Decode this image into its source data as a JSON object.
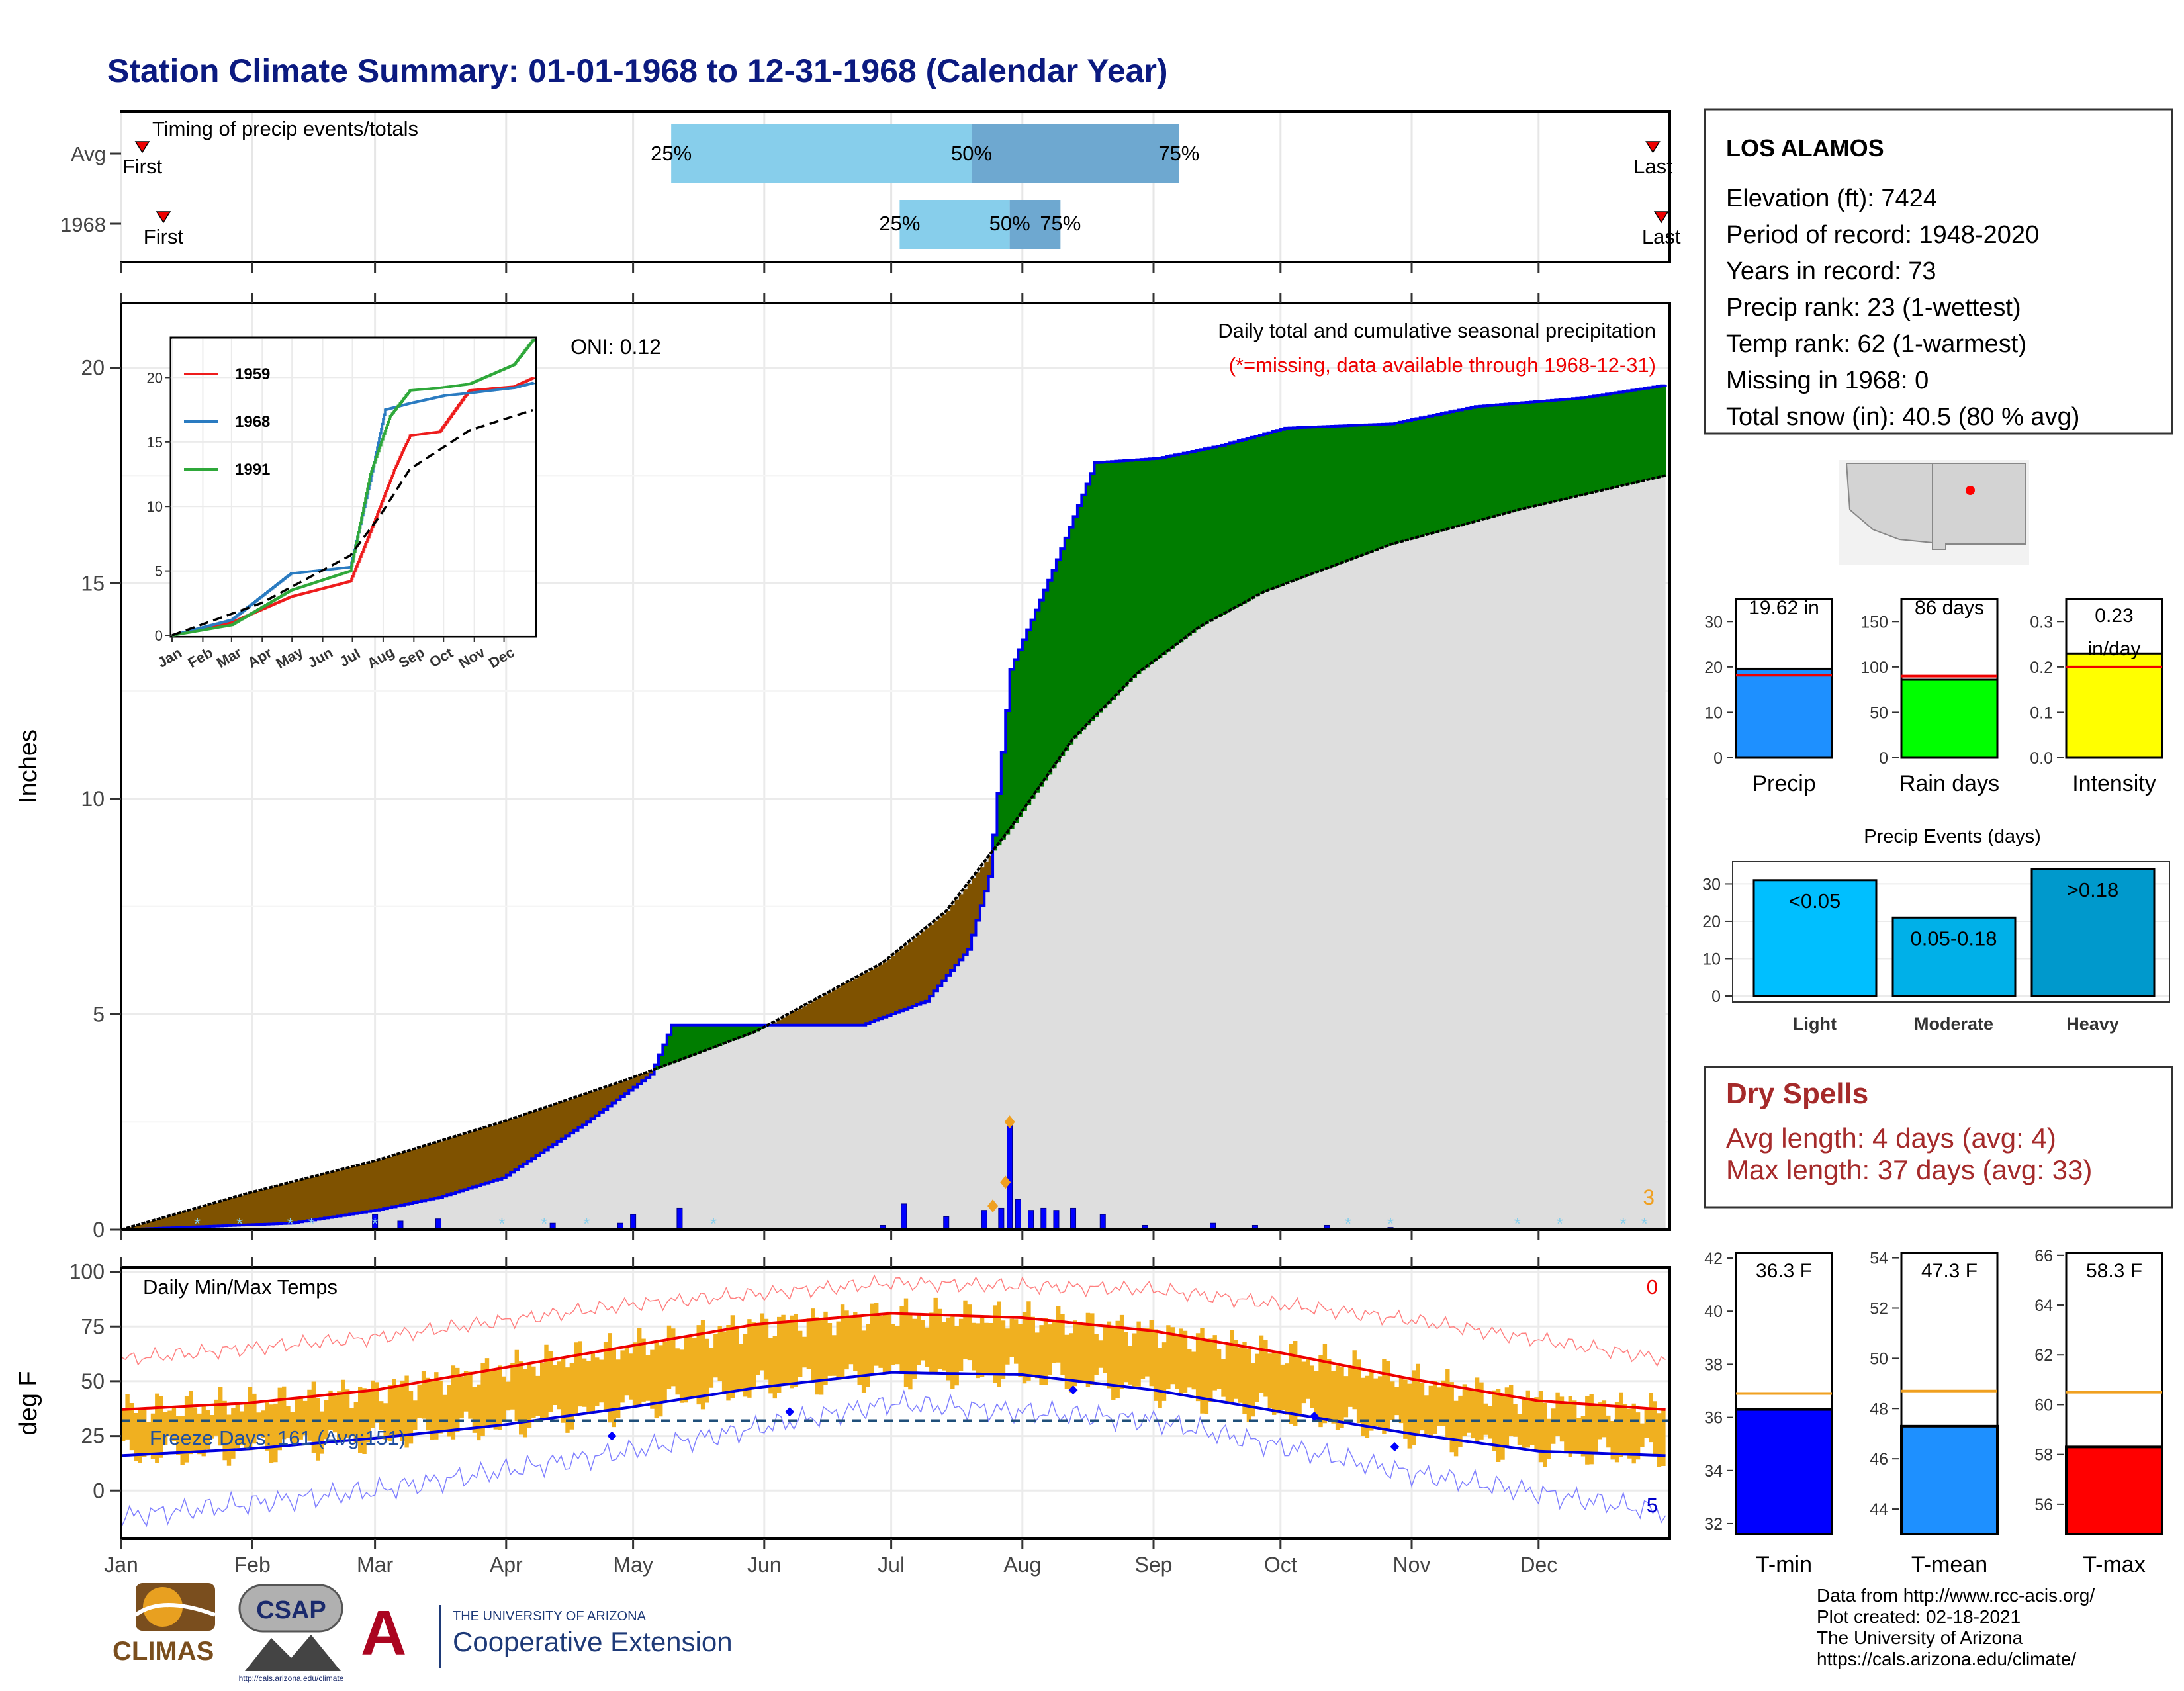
{
  "title": "Station Climate Summary: 01-01-1968 to 12-31-1968 (Calendar Year)",
  "colors": {
    "title": "#0b1a80",
    "cum_fill": "#dedede",
    "above_avg": "#007d00",
    "below_avg": "#7f5200",
    "obs_line": "#0000ee",
    "tmax": "#ee0000",
    "tmin": "#0000dd",
    "range_bar": "#f0b020",
    "spell_text": "#a52a2a",
    "q_light": "#87ceeb",
    "q_dark": "#6ea8d0"
  },
  "timing": {
    "title": "Timing of precip events/totals",
    "rows": [
      {
        "label": "Avg",
        "first": "First",
        "last": "Last",
        "first_day": 5,
        "last_day": 362,
        "q25": 130,
        "q50": 201,
        "q75": 250,
        "p25": "25%",
        "p50": "50%",
        "p75": "75%"
      },
      {
        "label": "1968",
        "first": "First",
        "last": "Last",
        "first_day": 10,
        "last_day": 364,
        "q25": 184,
        "q50": 210,
        "q75": 222,
        "p25": "25%",
        "p50": "50%",
        "p75": "75%"
      }
    ]
  },
  "main_panel": {
    "ylabel": "Inches",
    "oni": "ONI: 0.12",
    "annot1": "Daily total and cumulative seasonal precipitation",
    "annot2": "(*=missing, data available through 1968-12-31)",
    "snow_count": "3",
    "y_ticks": [
      "0",
      "5",
      "10",
      "15",
      "20"
    ]
  },
  "inset": {
    "legend": [
      "1959",
      "1968",
      "1991"
    ],
    "y_ticks": [
      "0",
      "5",
      "10",
      "15",
      "20"
    ],
    "months": [
      "Jan",
      "Feb",
      "Mar",
      "Apr",
      "May",
      "Jun",
      "Jul",
      "Aug",
      "Sep",
      "Oct",
      "Nov",
      "Dec"
    ]
  },
  "temps_panel": {
    "ylabel": "deg F",
    "title": "Daily Min/Max Temps",
    "freeze_text": "Freeze Days: 161 (Avg:151)",
    "count_top": "0",
    "count_bottom": "5",
    "y_ticks": [
      "0",
      "25",
      "50",
      "75",
      "100"
    ]
  },
  "months": [
    "Jan",
    "Feb",
    "Mar",
    "Apr",
    "May",
    "Jun",
    "Jul",
    "Aug",
    "Sep",
    "Oct",
    "Nov",
    "Dec"
  ],
  "station": {
    "name": "LOS ALAMOS",
    "lines": [
      "Elevation (ft): 7424",
      "Period of record: 1948-2020",
      "Years in record: 73",
      "Precip rank: 23 (1-wettest)",
      "Temp rank: 62 (1-warmest)",
      "Missing in 1968: 0",
      "Total snow (in): 40.5 (80 % avg)"
    ]
  },
  "mini_bars": [
    {
      "label": "Precip",
      "value_text": "19.62 in",
      "value": 19.62,
      "avg": 18.2,
      "ymax": 35,
      "ticks": [
        "0",
        "10",
        "20",
        "30"
      ],
      "color": "#1e90ff"
    },
    {
      "label": "Rain days",
      "value_text": "86 days",
      "value": 86,
      "avg": 90,
      "ymax": 175,
      "ticks": [
        "0",
        "50",
        "100",
        "150"
      ],
      "color": "#00ff00"
    },
    {
      "label": "Intensity",
      "value_text_1": "0.23",
      "value_text_2": "in/day",
      "value": 0.23,
      "avg": 0.2,
      "ymax": 0.35,
      "ticks": [
        "0.0",
        "0.1",
        "0.2",
        "0.3"
      ],
      "color": "#ffff00"
    }
  ],
  "precip_events": {
    "title": "Precip Events (days)",
    "ticks": [
      "0",
      "10",
      "20",
      "30"
    ],
    "bars": [
      {
        "label": "Light",
        "bar_text": "<0.05",
        "value": 31,
        "color": "#00bfff"
      },
      {
        "label": "Moderate",
        "bar_text": "0.05-0.18",
        "value": 21,
        "color": "#00b0e8"
      },
      {
        "label": "Heavy",
        "bar_text": ">0.18",
        "value": 34,
        "color": "#0099cc"
      }
    ]
  },
  "dry_spells": {
    "title": "Dry Spells",
    "avg_line": "Avg length: 4 days (avg: 4)",
    "max_line": "Max length: 37 days (avg: 33)"
  },
  "temp_bars": [
    {
      "label": "T-min",
      "value_text": "36.3 F",
      "value": 36.3,
      "avg": 36.9,
      "ymin": 31.6,
      "ymax": 42.2,
      "ticks": [
        "32",
        "34",
        "36",
        "38",
        "40",
        "42"
      ],
      "color": "#0000ff"
    },
    {
      "label": "T-mean",
      "value_text": "47.3 F",
      "value": 47.3,
      "avg": 48.7,
      "ymin": 43,
      "ymax": 54.2,
      "ticks": [
        "44",
        "46",
        "48",
        "50",
        "52",
        "54"
      ],
      "color": "#1e90ff"
    },
    {
      "label": "T-max",
      "value_text": "58.3 F",
      "value": 58.3,
      "avg": 60.5,
      "ymin": 54.8,
      "ymax": 66.1,
      "ticks": [
        "56",
        "58",
        "60",
        "62",
        "64",
        "66"
      ],
      "color": "#ff0000"
    }
  ],
  "footer": {
    "lines": [
      "Data from http://www.rcc-acis.org/",
      "Plot created: 02-18-2021",
      "The University of Arizona",
      "https://cals.arizona.edu/climate/"
    ]
  },
  "logos": {
    "climas": "CLIMAS",
    "csap": "CSAP",
    "csap_url": "http://cals.arizona.edu/climate",
    "uofa_small": "THE UNIVERSITY OF ARIZONA",
    "uofa_big": "Cooperative Extension"
  },
  "chart_data": [
    {
      "type": "area",
      "name": "Daily total and cumulative seasonal precipitation",
      "x_unit": "day of year 1968",
      "y_unit": "inches",
      "ylim": [
        0,
        21.5
      ],
      "observed_cumulative": {
        "x": [
          0,
          40,
          60,
          75,
          90,
          110,
          125,
          130,
          150,
          175,
          190,
          200,
          205,
          210,
          220,
          230,
          245,
          260,
          275,
          300,
          320,
          345,
          365
        ],
        "y": [
          0,
          0.15,
          0.45,
          0.75,
          1.2,
          2.5,
          3.6,
          4.75,
          4.75,
          4.75,
          5.3,
          6.5,
          8.2,
          13.0,
          15.3,
          17.8,
          17.9,
          18.2,
          18.6,
          18.7,
          19.1,
          19.3,
          19.6
        ]
      },
      "average_cumulative": {
        "x": [
          0,
          30,
          60,
          90,
          120,
          150,
          180,
          195,
          210,
          225,
          240,
          255,
          270,
          300,
          330,
          365
        ],
        "y": [
          0,
          0.85,
          1.6,
          2.5,
          3.5,
          4.6,
          6.2,
          7.4,
          9.3,
          11.4,
          12.9,
          14.0,
          14.8,
          15.9,
          16.7,
          17.5
        ]
      },
      "daily_bars": {
        "day": [
          60,
          66,
          75,
          102,
          118,
          121,
          132,
          180,
          185,
          195,
          204,
          208,
          210,
          212,
          215,
          218,
          221,
          225,
          232,
          242,
          258,
          268,
          285,
          300
        ],
        "inches": [
          0.35,
          0.2,
          0.25,
          0.15,
          0.15,
          0.35,
          0.5,
          0.1,
          0.6,
          0.3,
          0.45,
          0.5,
          2.5,
          0.7,
          0.45,
          0.5,
          0.45,
          0.5,
          0.35,
          0.1,
          0.15,
          0.1,
          0.1,
          0.05
        ]
      }
    },
    {
      "type": "line",
      "name": "Cumulative precip comparison",
      "x_unit": "day of year",
      "y_unit": "inches",
      "ylim": [
        0,
        21
      ],
      "series": [
        {
          "name": "1959",
          "x": [
            0,
            60,
            120,
            180,
            200,
            225,
            240,
            270,
            300,
            345,
            365
          ],
          "y": [
            0,
            1.0,
            3.0,
            4.2,
            8.0,
            13.0,
            15.5,
            15.8,
            19.0,
            19.3,
            20.0
          ]
        },
        {
          "name": "1968",
          "x": [
            0,
            60,
            120,
            180,
            200,
            215,
            240,
            275,
            300,
            345,
            365
          ],
          "y": [
            0,
            1.2,
            4.8,
            5.3,
            12.0,
            17.5,
            18.0,
            18.6,
            18.8,
            19.2,
            19.6
          ]
        },
        {
          "name": "1991",
          "x": [
            0,
            60,
            120,
            180,
            200,
            220,
            240,
            270,
            300,
            345,
            365
          ],
          "y": [
            0,
            0.8,
            3.5,
            5.0,
            12.5,
            17.0,
            19.0,
            19.2,
            19.5,
            21.0,
            23.0
          ]
        }
      ],
      "average": {
        "x": [
          0,
          90,
          180,
          210,
          240,
          300,
          365
        ],
        "y": [
          0,
          2.5,
          6.2,
          9.3,
          12.9,
          15.9,
          17.5
        ]
      }
    },
    {
      "type": "line",
      "name": "Daily Min/Max Temps",
      "x_unit": "day of year 1968",
      "y_unit": "deg F",
      "ylim": [
        -22,
        102
      ],
      "freeze_line": 32,
      "avg_tmax": {
        "x": [
          0,
          30,
          60,
          90,
          120,
          150,
          182,
          213,
          244,
          274,
          305,
          335,
          365
        ],
        "y": [
          37,
          40,
          46,
          56,
          66,
          76,
          81,
          79,
          73,
          63,
          51,
          41,
          37
        ]
      },
      "avg_tmin": {
        "x": [
          0,
          30,
          60,
          90,
          120,
          150,
          182,
          213,
          244,
          274,
          305,
          335,
          365
        ],
        "y": [
          16,
          19,
          24,
          30,
          38,
          47,
          54,
          53,
          46,
          36,
          26,
          18,
          16
        ]
      },
      "record_high": {
        "x": [
          0,
          60,
          120,
          182,
          244,
          305,
          365
        ],
        "y": [
          60,
          70,
          85,
          95,
          92,
          78,
          60
        ]
      },
      "record_low": {
        "x": [
          0,
          60,
          120,
          182,
          244,
          305,
          365
        ],
        "y": [
          -12,
          0,
          18,
          40,
          32,
          8,
          -10
        ]
      }
    }
  ]
}
